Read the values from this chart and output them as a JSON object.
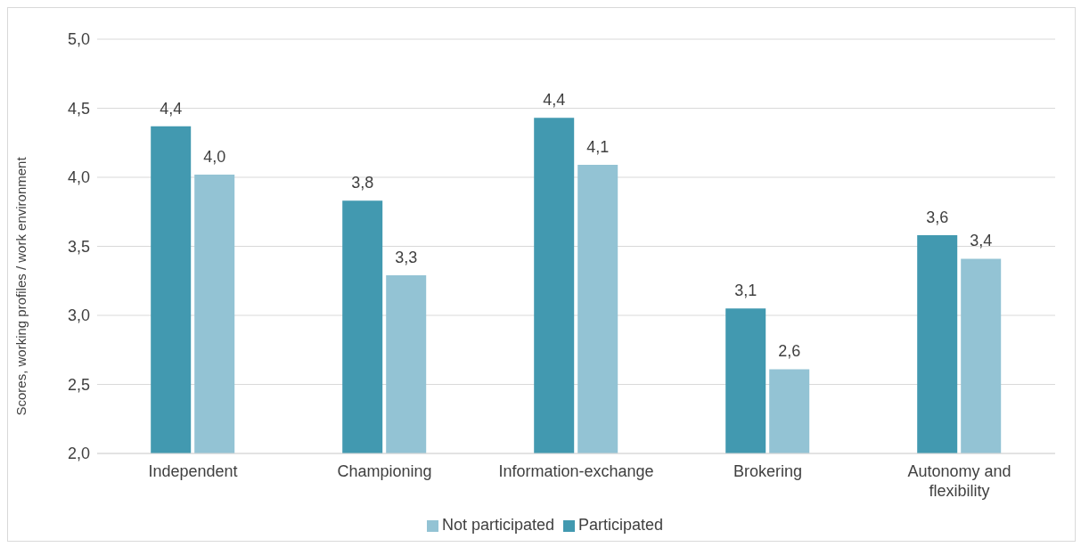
{
  "chart_data": {
    "type": "bar",
    "ylabel": "Scores, working profiles / work environment",
    "categories": [
      "Independent",
      "Championing",
      "Information-exchange",
      "Brokering",
      "Autonomy and flexibility"
    ],
    "series": [
      {
        "name": "Participated",
        "color": "#4299b0",
        "values": [
          4.37,
          3.83,
          4.43,
          3.05,
          3.58
        ],
        "value_labels": [
          "4,4",
          "3,8",
          "4,4",
          "3,1",
          "3,6"
        ]
      },
      {
        "name": "Not participated",
        "color": "#93c3d4",
        "values": [
          4.02,
          3.29,
          4.09,
          2.61,
          3.41
        ],
        "value_labels": [
          "4,0",
          "3,3",
          "4,1",
          "2,6",
          "3,4"
        ]
      }
    ],
    "ylim": [
      2,
      5
    ],
    "yticks": [
      {
        "value": 2,
        "label": "2,0"
      },
      {
        "value": 2.5,
        "label": "2,5"
      },
      {
        "value": 3,
        "label": "3,0"
      },
      {
        "value": 3.5,
        "label": "3,5"
      },
      {
        "value": 4,
        "label": "4,0"
      },
      {
        "value": 4.5,
        "label": "4,5"
      },
      {
        "value": 5,
        "label": "5,0"
      }
    ],
    "grid": "y",
    "legend": "bottom"
  }
}
